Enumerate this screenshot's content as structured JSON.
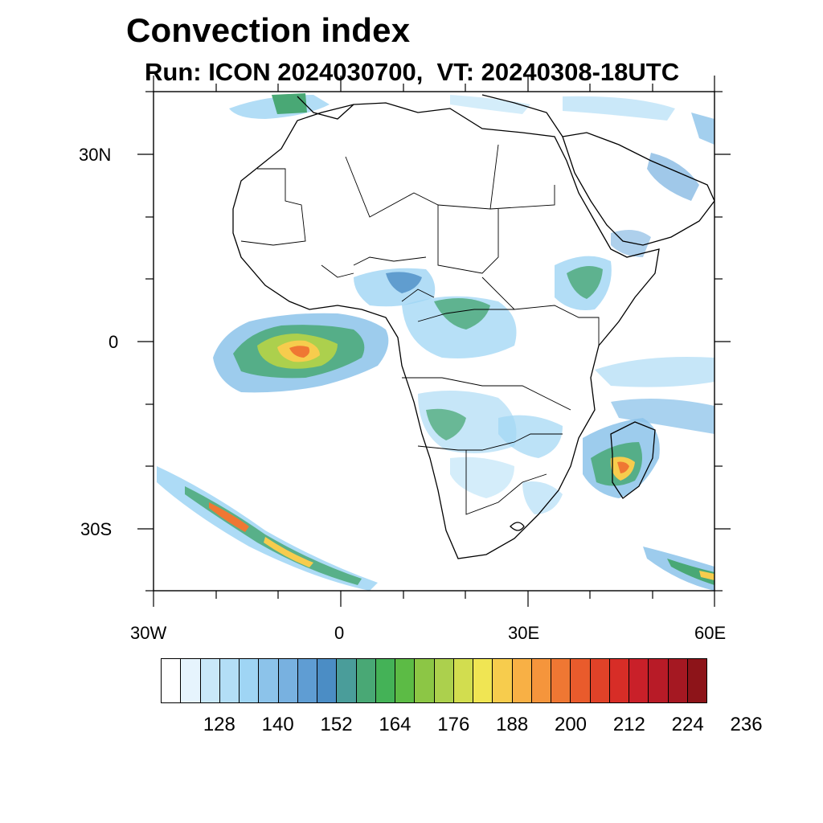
{
  "title": "Convection index",
  "subtitle": "Run: ICON 2024030700,  VT: 20240308-18UTC",
  "map": {
    "lat_labels": [
      "30N",
      "0",
      "30S"
    ],
    "lon_labels": [
      "30W",
      "0",
      "30E",
      "60E"
    ]
  },
  "colorbar": {
    "colors": [
      "#ffffff",
      "#e6f4fd",
      "#c9e8f9",
      "#b3def6",
      "#9fd5f4",
      "#8cc3ea",
      "#78b1e0",
      "#5f9dd3",
      "#4b8dc5",
      "#4a9d9a",
      "#49a875",
      "#44b257",
      "#5cbb45",
      "#8cc645",
      "#acd04d",
      "#d2dd4f",
      "#f0e553",
      "#f7cc4d",
      "#f8b045",
      "#f5953c",
      "#ef7733",
      "#e95b2c",
      "#e04228",
      "#d72d27",
      "#c92029",
      "#b81b27",
      "#a51822",
      "#8d1419"
    ],
    "labels": [
      "128",
      "140",
      "152",
      "164",
      "176",
      "188",
      "200",
      "212",
      "224",
      "236"
    ]
  }
}
